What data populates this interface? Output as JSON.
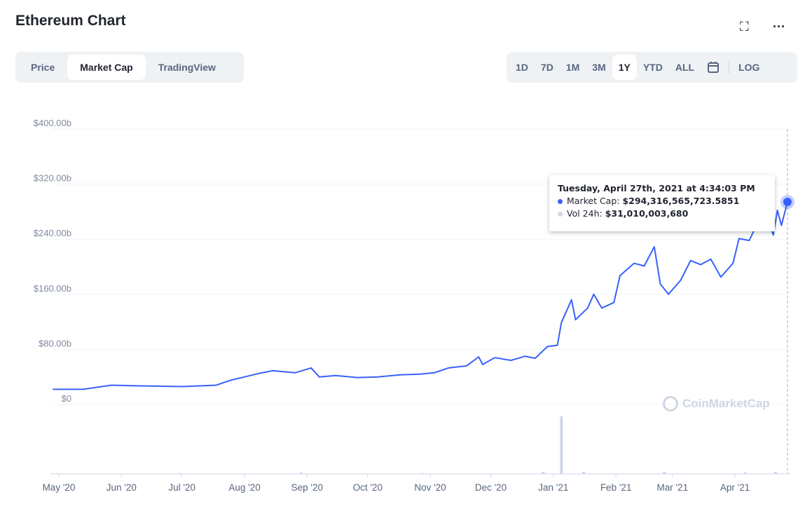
{
  "header": {
    "title": "Ethereum Chart",
    "fullscreen_icon": "expand-icon",
    "more_icon": "more-dots-icon"
  },
  "tabs": [
    {
      "label": "Price"
    },
    {
      "label": "Market Cap",
      "active": true
    },
    {
      "label": "TradingView"
    }
  ],
  "ranges": [
    {
      "label": "1D"
    },
    {
      "label": "7D"
    },
    {
      "label": "1M"
    },
    {
      "label": "3M"
    },
    {
      "label": "1Y",
      "active": true
    },
    {
      "label": "YTD"
    },
    {
      "label": "ALL"
    }
  ],
  "log_label": "LOG",
  "tooltip": {
    "date": "Tuesday, April 27th, 2021 at 4:34:03 PM",
    "mc_label": "Market Cap:",
    "mc_value": "$294,316,565,723.5851",
    "vol_label": "Vol 24h:",
    "vol_value": "$31,010,003,680"
  },
  "watermark": "CoinMarketCap",
  "colors": {
    "line": "#3861fb",
    "volume": "#cfd6e4"
  },
  "chart_data": {
    "type": "line",
    "title": "Ethereum Chart",
    "ylabel": "Market Cap",
    "ylim": [
      0,
      400
    ],
    "yticks": [
      "$0",
      "$80.00b",
      "$160.00b",
      "$240.00b",
      "$320.00b",
      "$400.00b"
    ],
    "ytick_values": [
      0,
      80,
      160,
      240,
      320,
      400
    ],
    "xticks": [
      {
        "label": "May '20",
        "day": 0
      },
      {
        "label": "Jun '20",
        "day": 31
      },
      {
        "label": "Jul '20",
        "day": 61
      },
      {
        "label": "Aug '20",
        "day": 92
      },
      {
        "label": "Sep '20",
        "day": 123
      },
      {
        "label": "Oct '20",
        "day": 153
      },
      {
        "label": "Nov '20",
        "day": 184
      },
      {
        "label": "Dec '20",
        "day": 214
      },
      {
        "label": "Jan '21",
        "day": 245
      },
      {
        "label": "Feb '21",
        "day": 276
      },
      {
        "label": "Mar '21",
        "day": 304
      },
      {
        "label": "Apr '21",
        "day": 335
      }
    ],
    "xlim": [
      -3,
      361
    ],
    "series": [
      {
        "name": "Market Cap ($b)",
        "x": [
          -3,
          12,
          26,
          40,
          61,
          78,
          85,
          92,
          99,
          106,
          117,
          125,
          129,
          137,
          148,
          158,
          169,
          179,
          186,
          193,
          202,
          208,
          210,
          216,
          224,
          231,
          236,
          242,
          247,
          249,
          254,
          256,
          262,
          265,
          269,
          275,
          278,
          285,
          290,
          295,
          298,
          302,
          308,
          313,
          318,
          323,
          328,
          334,
          337,
          342,
          346,
          349,
          354,
          356,
          358,
          361
        ],
        "values": [
          22,
          22,
          28,
          27,
          26,
          28,
          35,
          40,
          45,
          49,
          46,
          53,
          40,
          42,
          39,
          40,
          43,
          44,
          46,
          53,
          56,
          69,
          58,
          68,
          64,
          70,
          67,
          84,
          86,
          119,
          152,
          123,
          140,
          160,
          140,
          148,
          187,
          205,
          201,
          229,
          175,
          160,
          180,
          209,
          203,
          211,
          185,
          205,
          241,
          238,
          262,
          282,
          246,
          282,
          260,
          294
        ]
      }
    ],
    "volume": {
      "x": [
        0,
        60,
        120,
        180,
        240,
        249,
        260,
        300,
        340,
        355
      ],
      "values": [
        1,
        1,
        2,
        1,
        3,
        82,
        3,
        3,
        2,
        3
      ]
    }
  }
}
